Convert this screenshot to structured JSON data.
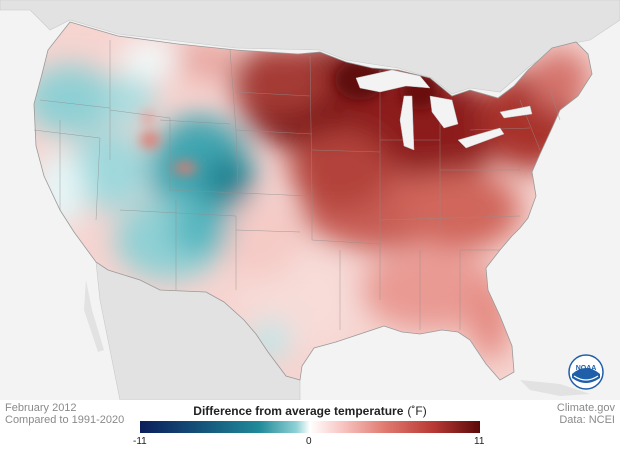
{
  "map": {
    "title": "Difference from average temperature",
    "unit": "(˚F)",
    "period": "February 2012",
    "baseline": "Compared to 1991-2020",
    "credit_site": "Climate.gov",
    "credit_data": "Data: NCEI",
    "legend": {
      "min": "-11",
      "zero": "0",
      "max": "11"
    },
    "colors": {
      "cold_extreme": "#0c1e5b",
      "cool": "#1f8a99",
      "neutral": "#ffffff",
      "warm": "#e07a70",
      "warm_extreme": "#5a0a0a",
      "land_outside": "#e0e0e0",
      "ocean": "#f3f3f3"
    },
    "logo": "noaa-logo"
  }
}
